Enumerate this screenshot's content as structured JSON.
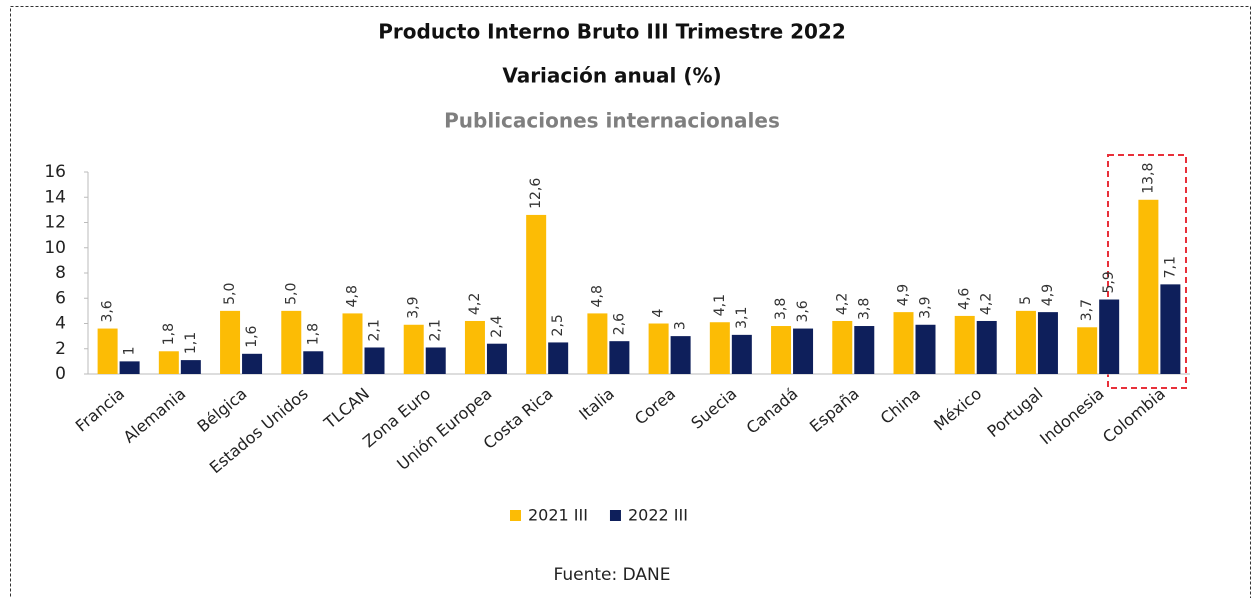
{
  "chart_data": {
    "type": "bar",
    "title": "Producto Interno Bruto III Trimestre 2022",
    "subtitle": "Variación anual (%)",
    "subtitle2": "Publicaciones internacionales",
    "source": "Fuente: DANE",
    "categories": [
      "Francia",
      "Alemania",
      "Bélgica",
      "Estados Unidos",
      "TLCAN",
      "Zona Euro",
      "Unión Europea",
      "Costa Rica",
      "Italia",
      "Corea",
      "Suecia",
      "Canadá",
      "España",
      "China",
      "México",
      "Portugal",
      "Indonesia",
      "Colombia"
    ],
    "series": [
      {
        "name": "2021 III",
        "color": "#fcbc05",
        "values": [
          3.6,
          1.8,
          5.0,
          5.0,
          4.8,
          3.9,
          4.2,
          12.6,
          4.8,
          4,
          4.1,
          3.8,
          4.2,
          4.9,
          4.6,
          5,
          3.7,
          13.8
        ],
        "value_labels": [
          "3,6",
          "1,8",
          "5,0",
          "5,0",
          "4,8",
          "3,9",
          "4,2",
          "12,6",
          "4,8",
          "4",
          "4,1",
          "3,8",
          "4,2",
          "4,9",
          "4,6",
          "5",
          "3,7",
          "13,8"
        ]
      },
      {
        "name": "2022 III",
        "color": "#0e1f5b",
        "values": [
          1,
          1.1,
          1.6,
          1.8,
          2.1,
          2.1,
          2.4,
          2.5,
          2.6,
          3,
          3.1,
          3.6,
          3.8,
          3.9,
          4.2,
          4.9,
          5.9,
          7.1
        ],
        "value_labels": [
          "1",
          "1,1",
          "1,6",
          "1,8",
          "2,1",
          "2,1",
          "2,4",
          "2,5",
          "2,6",
          "3",
          "3,1",
          "3,6",
          "3,8",
          "3,9",
          "4,2",
          "4,9",
          "5,9",
          "7,1"
        ]
      }
    ],
    "ylim": [
      0,
      16
    ],
    "yticks": [
      0,
      2,
      4,
      6,
      8,
      10,
      12,
      14,
      16
    ],
    "legend": "bottom"
  }
}
